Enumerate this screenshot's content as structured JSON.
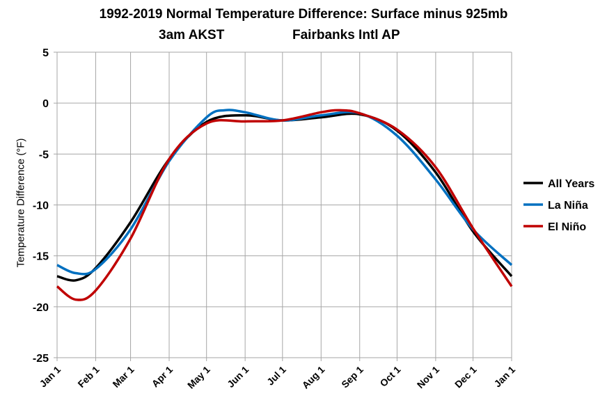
{
  "chart_data": {
    "type": "line",
    "title": "1992-2019  Normal Temperature Difference:  Surface minus 925mb",
    "subtitle_left": "3am AKST",
    "subtitle_right": "Fairbanks Intl AP",
    "xlabel": "",
    "ylabel": "Temperature Difference (°F)",
    "ylim": [
      -25,
      5
    ],
    "yticks": [
      5,
      0,
      -5,
      -10,
      -15,
      -20,
      -25
    ],
    "xticks": [
      "Jan 1",
      "Feb 1",
      "Mar 1",
      "Apr 1",
      "May 1",
      "Jun 1",
      "Jul 1",
      "Aug 1",
      "Sep 1",
      "Oct 1",
      "Nov 1",
      "Dec 1",
      "Jan 1"
    ],
    "grid": true,
    "legend": "right",
    "series": [
      {
        "name": "All Years",
        "color": "#000000",
        "points": [
          [
            "Jan 1",
            -17.0
          ],
          [
            "Jan 16",
            -17.4
          ],
          [
            "Feb 1",
            -16.2
          ],
          [
            "Mar 1",
            -11.7
          ],
          [
            "Apr 1",
            -5.5
          ],
          [
            "May 1",
            -1.85
          ],
          [
            "Jun 1",
            -1.2
          ],
          [
            "Jul 1",
            -1.7
          ],
          [
            "Aug 1",
            -1.4
          ],
          [
            "Sep 1",
            -1.1
          ],
          [
            "Oct 1",
            -2.7
          ],
          [
            "Nov 1",
            -6.8
          ],
          [
            "Dec 1",
            -12.6
          ],
          [
            "Jan 1 (next)",
            -17.0
          ]
        ]
      },
      {
        "name": "La Niña",
        "color": "#0070C0",
        "points": [
          [
            "Jan 1",
            -15.9
          ],
          [
            "Jan 16",
            -16.7
          ],
          [
            "Feb 1",
            -16.3
          ],
          [
            "Mar 1",
            -12.4
          ],
          [
            "Apr 1",
            -5.7
          ],
          [
            "May 1",
            -1.4
          ],
          [
            "May 16",
            -0.7
          ],
          [
            "Jun 1",
            -0.9
          ],
          [
            "Jul 1",
            -1.7
          ],
          [
            "Aug 1",
            -1.2
          ],
          [
            "Sep 1",
            -1.0
          ],
          [
            "Oct 1",
            -3.2
          ],
          [
            "Nov 1",
            -7.5
          ],
          [
            "Dec 1",
            -12.4
          ],
          [
            "Jan 1 (next)",
            -15.9
          ]
        ]
      },
      {
        "name": "El Niño",
        "color": "#C00000",
        "points": [
          [
            "Jan 1",
            -18.0
          ],
          [
            "Jan 16",
            -19.3
          ],
          [
            "Feb 1",
            -18.4
          ],
          [
            "Mar 1",
            -13.3
          ],
          [
            "Apr 1",
            -5.5
          ],
          [
            "May 1",
            -2.0
          ],
          [
            "Jun 1",
            -1.8
          ],
          [
            "Jul 1",
            -1.7
          ],
          [
            "Aug 1",
            -0.9
          ],
          [
            "Aug 16",
            -0.7
          ],
          [
            "Sep 1",
            -1.0
          ],
          [
            "Oct 1",
            -2.6
          ],
          [
            "Nov 1",
            -6.3
          ],
          [
            "Dec 1",
            -12.3
          ],
          [
            "Jan 1 (next)",
            -18.0
          ]
        ]
      }
    ]
  }
}
